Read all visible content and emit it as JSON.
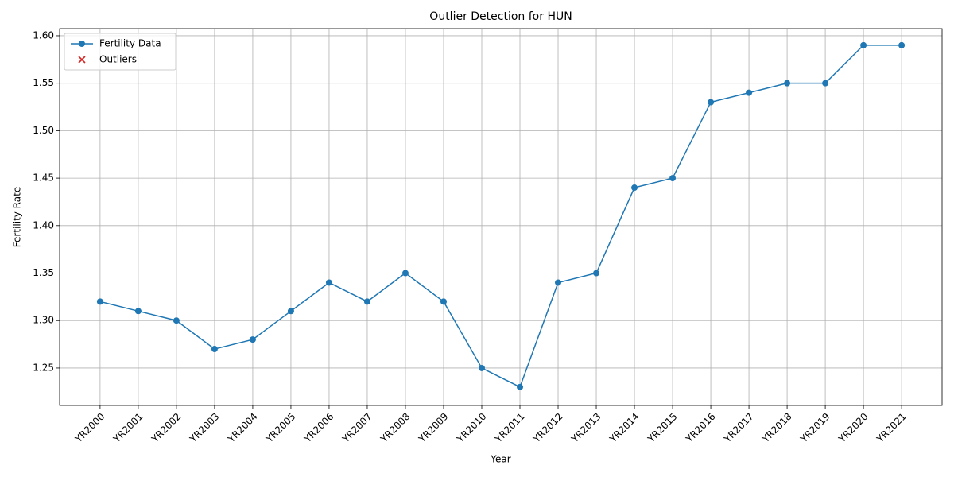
{
  "chart_data": {
    "type": "line",
    "title": "Outlier Detection for HUN",
    "xlabel": "Year",
    "ylabel": "Fertility Rate",
    "categories": [
      "YR2000",
      "YR2001",
      "YR2002",
      "YR2003",
      "YR2004",
      "YR2005",
      "YR2006",
      "YR2007",
      "YR2008",
      "YR2009",
      "YR2010",
      "YR2011",
      "YR2012",
      "YR2013",
      "YR2014",
      "YR2015",
      "YR2016",
      "YR2017",
      "YR2018",
      "YR2019",
      "YR2020",
      "YR2021"
    ],
    "series": [
      {
        "name": "Fertility Data",
        "color": "#1f77b4",
        "marker": "o",
        "values": [
          1.32,
          1.31,
          1.3,
          1.27,
          1.28,
          1.31,
          1.34,
          1.32,
          1.35,
          1.32,
          1.25,
          1.23,
          1.34,
          1.35,
          1.44,
          1.45,
          1.53,
          1.54,
          1.55,
          1.55,
          1.59,
          1.59
        ]
      },
      {
        "name": "Outliers",
        "color": "#d62728",
        "marker": "x",
        "values": [
          null,
          null,
          null,
          null,
          null,
          null,
          null,
          null,
          null,
          null,
          null,
          null,
          null,
          null,
          null,
          null,
          null,
          null,
          null,
          null,
          null,
          null
        ]
      }
    ],
    "ylim": [
      1.2106,
      1.6075
    ],
    "yticks": [
      1.25,
      {
        "value": 1.3,
        "label": "1.30"
      },
      1.35,
      {
        "value": 1.4,
        "label": "1.40"
      },
      1.45,
      {
        "value": 1.5,
        "label": "1.50"
      },
      1.55,
      {
        "value": 1.6,
        "label": "1.60"
      }
    ],
    "grid": true,
    "legend": "upper left"
  }
}
